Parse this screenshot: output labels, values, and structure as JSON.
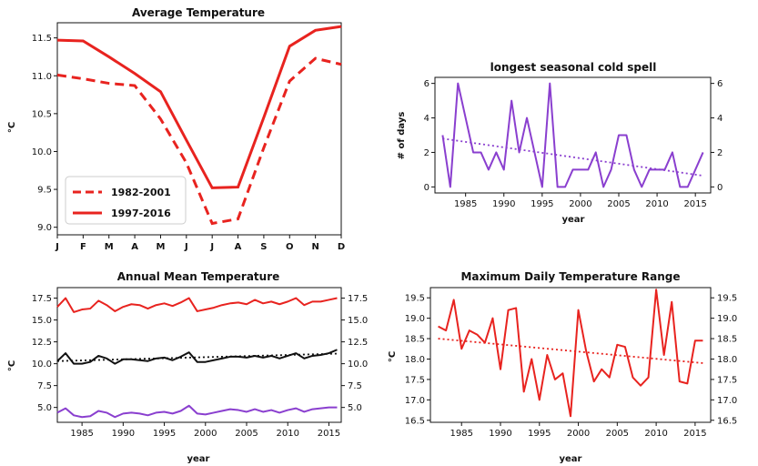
{
  "chart_data": [
    {
      "type": "line",
      "title": "Average Temperature",
      "xlabel": "",
      "ylabel": "°C",
      "categories": [
        "J",
        "F",
        "M",
        "A",
        "M",
        "J",
        "J",
        "A",
        "S",
        "O",
        "N",
        "D"
      ],
      "ylim": [
        8.9,
        11.7
      ],
      "yticks": [
        "9.0",
        "9.5",
        "10.0",
        "10.5",
        "11.0",
        "11.5"
      ],
      "series": [
        {
          "name": "1982-2001",
          "style": "dashed",
          "color": "#e8231f",
          "values": [
            11.01,
            10.96,
            10.9,
            10.87,
            10.43,
            9.85,
            9.05,
            9.11,
            10.05,
            10.93,
            11.23,
            11.15
          ]
        },
        {
          "name": "1997-2016",
          "style": "solid",
          "color": "#e8231f",
          "values": [
            11.47,
            11.46,
            11.25,
            11.03,
            10.79,
            10.15,
            9.52,
            9.53,
            10.45,
            11.39,
            11.6,
            11.65
          ]
        }
      ],
      "legend": "lower-left"
    },
    {
      "type": "line",
      "title": "longest seasonal cold spell",
      "xlabel": "year",
      "ylabel": "# of days",
      "xlim": [
        1981,
        2017
      ],
      "ylim": [
        -0.35,
        6.35
      ],
      "xticks": [
        "1985",
        "1990",
        "1995",
        "2000",
        "2005",
        "2010",
        "2015"
      ],
      "yticks": [
        "0",
        "2",
        "4",
        "6"
      ],
      "y2ticks": [
        "0",
        "2",
        "4",
        "6"
      ],
      "color": "#8a3fcf",
      "x": [
        1982,
        1983,
        1984,
        1985,
        1986,
        1987,
        1988,
        1989,
        1990,
        1991,
        1992,
        1993,
        1994,
        1995,
        1996,
        1997,
        1998,
        1999,
        2000,
        2001,
        2002,
        2003,
        2004,
        2005,
        2006,
        2007,
        2008,
        2009,
        2010,
        2011,
        2012,
        2013,
        2014,
        2015,
        2016
      ],
      "values": [
        3,
        0,
        6,
        4,
        2,
        2,
        1,
        2,
        1,
        5,
        2,
        4,
        2,
        0,
        6,
        0,
        0,
        1,
        1,
        1,
        2,
        0,
        1,
        3,
        3,
        1,
        0,
        1,
        1,
        1,
        2,
        0,
        0,
        1,
        2
      ],
      "trend": [
        2.8,
        0.65
      ]
    },
    {
      "type": "line",
      "title": "Annual Mean Temperature",
      "xlabel": "year",
      "ylabel": "°C",
      "xlim": [
        1982,
        2016.5
      ],
      "ylim": [
        3.3,
        18.7
      ],
      "xticks": [
        "1985",
        "1990",
        "1995",
        "2000",
        "2005",
        "2010",
        "2015"
      ],
      "yticks": [
        "5.0",
        "7.5",
        "10.0",
        "12.5",
        "15.0",
        "17.5"
      ],
      "y2ticks": [
        "5.0",
        "7.5",
        "10.0",
        "12.5",
        "15.0",
        "17.5"
      ],
      "x": [
        1982,
        1983,
        1984,
        1985,
        1986,
        1987,
        1988,
        1989,
        1990,
        1991,
        1992,
        1993,
        1994,
        1995,
        1996,
        1997,
        1998,
        1999,
        2000,
        2001,
        2002,
        2003,
        2004,
        2005,
        2006,
        2007,
        2008,
        2009,
        2010,
        2011,
        2012,
        2013,
        2014,
        2015,
        2016
      ],
      "series": [
        {
          "color": "#e8231f",
          "values": [
            16.5,
            17.5,
            15.9,
            16.2,
            16.3,
            17.2,
            16.7,
            16.0,
            16.5,
            16.8,
            16.7,
            16.3,
            16.7,
            16.9,
            16.6,
            17.0,
            17.5,
            16.0,
            16.2,
            16.4,
            16.7,
            16.9,
            17.0,
            16.8,
            17.3,
            16.9,
            17.1,
            16.8,
            17.1,
            17.5,
            16.7,
            17.1,
            17.1,
            17.3,
            17.5
          ]
        },
        {
          "color": "#111111",
          "values": [
            10.3,
            11.2,
            10.0,
            10.0,
            10.2,
            10.9,
            10.6,
            10.0,
            10.5,
            10.5,
            10.4,
            10.3,
            10.6,
            10.7,
            10.4,
            10.8,
            11.3,
            10.2,
            10.2,
            10.4,
            10.6,
            10.8,
            10.8,
            10.7,
            10.9,
            10.7,
            10.9,
            10.6,
            10.9,
            11.2,
            10.6,
            10.9,
            11.0,
            11.2,
            11.6
          ]
        },
        {
          "color": "#8a3fcf",
          "values": [
            4.4,
            4.9,
            4.1,
            3.9,
            4.0,
            4.6,
            4.4,
            3.9,
            4.3,
            4.4,
            4.3,
            4.1,
            4.4,
            4.5,
            4.3,
            4.6,
            5.2,
            4.3,
            4.2,
            4.4,
            4.6,
            4.8,
            4.7,
            4.5,
            4.8,
            4.5,
            4.7,
            4.4,
            4.7,
            4.9,
            4.5,
            4.8,
            4.9,
            5.0,
            5.0
          ]
        }
      ],
      "trend": [
        10.3,
        11.15
      ]
    },
    {
      "type": "line",
      "title": "Maximum Daily Temperature Range",
      "xlabel": "year",
      "ylabel": "°C",
      "xlim": [
        1981,
        2017
      ],
      "ylim": [
        16.45,
        19.75
      ],
      "xticks": [
        "1985",
        "1990",
        "1995",
        "2000",
        "2005",
        "2010",
        "2015"
      ],
      "yticks": [
        "16.5",
        "17.0",
        "17.5",
        "18.0",
        "18.5",
        "19.0",
        "19.5"
      ],
      "y2ticks": [
        "16.5",
        "17.0",
        "17.5",
        "18.0",
        "18.5",
        "19.0",
        "19.5"
      ],
      "color": "#e8231f",
      "x": [
        1982,
        1983,
        1984,
        1985,
        1986,
        1987,
        1988,
        1989,
        1990,
        1991,
        1992,
        1993,
        1994,
        1995,
        1996,
        1997,
        1998,
        1999,
        2000,
        2001,
        2002,
        2003,
        2004,
        2005,
        2006,
        2007,
        2008,
        2009,
        2010,
        2011,
        2012,
        2013,
        2014,
        2015,
        2016
      ],
      "values": [
        18.8,
        18.7,
        19.45,
        18.25,
        18.7,
        18.6,
        18.4,
        19.0,
        17.75,
        19.2,
        19.25,
        17.2,
        18.0,
        17.0,
        18.1,
        17.5,
        17.65,
        16.6,
        19.2,
        18.2,
        17.45,
        17.75,
        17.55,
        18.35,
        18.3,
        17.55,
        17.35,
        17.55,
        19.7,
        18.1,
        19.4,
        17.45,
        17.4,
        18.45,
        18.45
      ],
      "trend": [
        18.5,
        17.9
      ]
    }
  ]
}
